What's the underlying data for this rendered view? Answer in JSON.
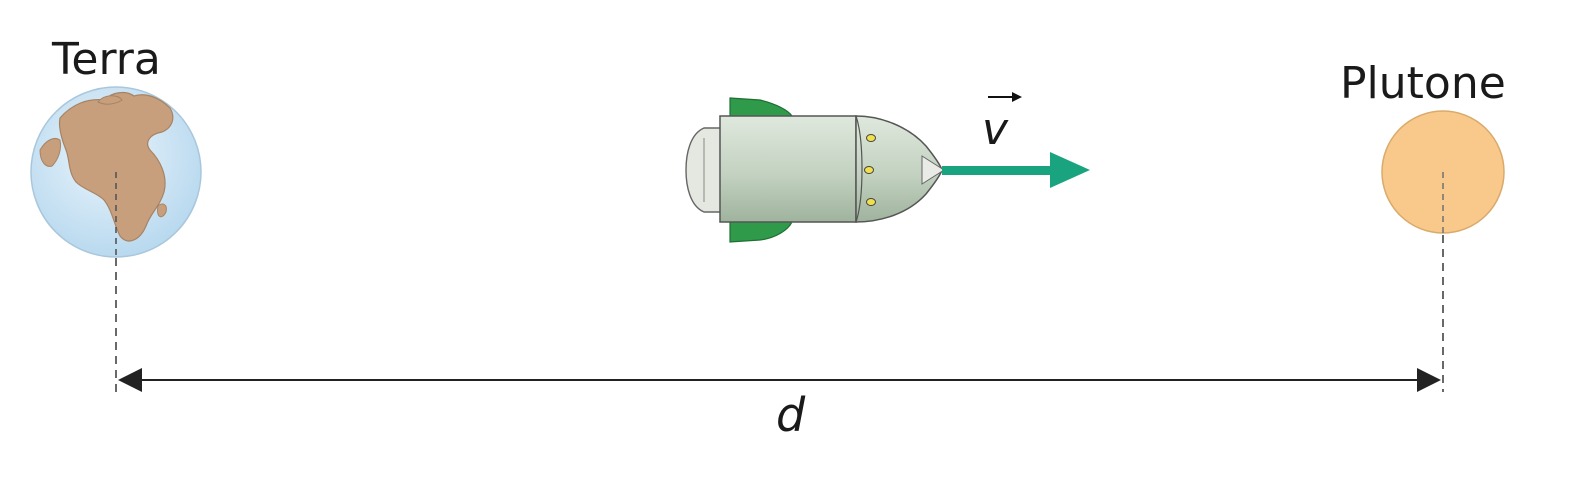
{
  "labels": {
    "earth": "Terra",
    "pluto": "Plutone",
    "velocity": "v",
    "distance": "d"
  },
  "colors": {
    "earth_ocean": "#cfe6f6",
    "earth_land": "#c79f7d",
    "pluto": "#f8c98a",
    "arrow": "#1aa37f",
    "rocket_body": "#c6d4c4",
    "rocket_fin": "#2f9a4a",
    "dimension_line": "#333333"
  },
  "icons": {
    "earth": "earth-globe-icon",
    "pluto": "planet-icon",
    "rocket": "rocket-icon"
  }
}
